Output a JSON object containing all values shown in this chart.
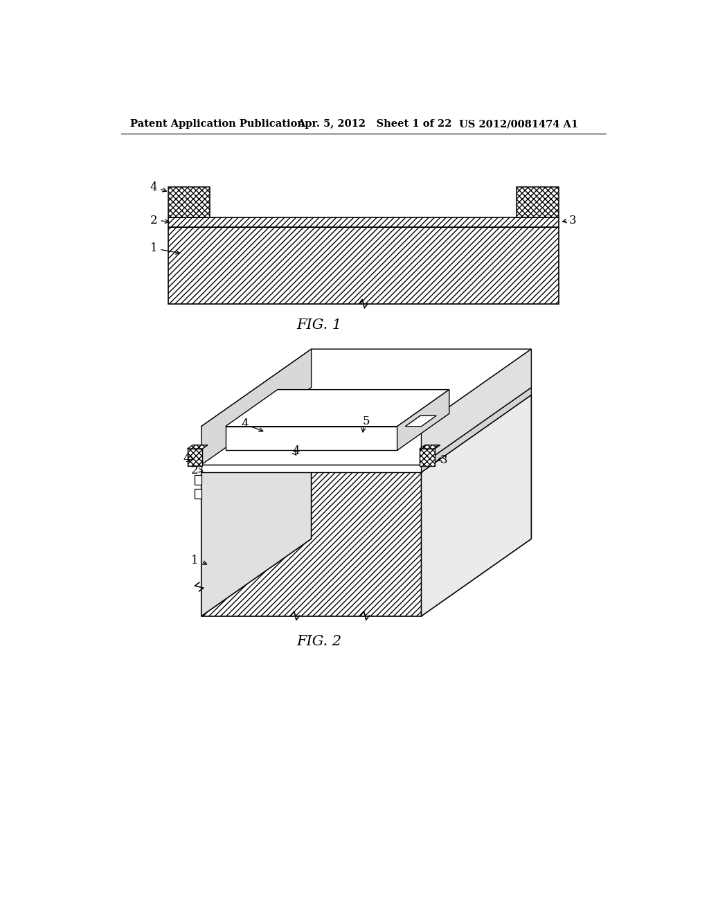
{
  "bg_color": "#ffffff",
  "line_color": "#000000",
  "header_left": "Patent Application Publication",
  "header_mid": "Apr. 5, 2012   Sheet 1 of 22",
  "header_right": "US 2012/0081474 A1",
  "fig1_label": "FIG. 1",
  "fig2_label": "FIG. 2"
}
